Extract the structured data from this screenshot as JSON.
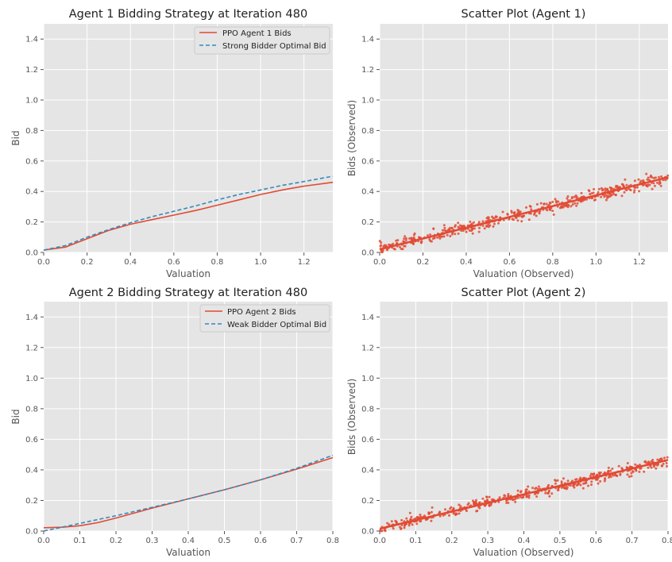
{
  "chart_data": [
    {
      "type": "line",
      "title": "Agent 1 Bidding Strategy at Iteration 480",
      "xlabel": "Valuation",
      "ylabel": "Bid",
      "xlim": [
        0,
        1.333
      ],
      "ylim": [
        0,
        1.5
      ],
      "xticks": [
        0.0,
        0.2,
        0.4,
        0.6,
        0.8,
        1.0,
        1.2
      ],
      "xtick_labels": [
        "0.0",
        "0.2",
        "0.4",
        "0.6",
        "0.8",
        "1.0",
        "1.2"
      ],
      "yticks": [
        0.0,
        0.2,
        0.4,
        0.6,
        0.8,
        1.0,
        1.2,
        1.4
      ],
      "ytick_labels": [
        "0.0",
        "0.2",
        "0.4",
        "0.6",
        "0.8",
        "1.0",
        "1.2",
        "1.4"
      ],
      "legend_position": "top-right",
      "series": [
        {
          "name": "PPO Agent 1 Bids",
          "style": "solid",
          "color": "#e24a33",
          "x": [
            0,
            0.1,
            0.2,
            0.3,
            0.4,
            0.5,
            0.6,
            0.7,
            0.8,
            0.9,
            1.0,
            1.1,
            1.2,
            1.333
          ],
          "y": [
            0.015,
            0.035,
            0.09,
            0.145,
            0.185,
            0.215,
            0.245,
            0.275,
            0.31,
            0.345,
            0.38,
            0.41,
            0.435,
            0.46
          ]
        },
        {
          "name": "Strong Bidder Optimal Bid",
          "style": "dashed",
          "color": "#348abd",
          "x": [
            0,
            0.1,
            0.2,
            0.3,
            0.4,
            0.5,
            0.6,
            0.7,
            0.8,
            0.9,
            1.0,
            1.1,
            1.2,
            1.333
          ],
          "y": [
            0.015,
            0.045,
            0.1,
            0.15,
            0.195,
            0.235,
            0.27,
            0.305,
            0.345,
            0.38,
            0.41,
            0.44,
            0.465,
            0.5
          ]
        }
      ]
    },
    {
      "type": "scatter",
      "title": "Scatter Plot (Agent 1)",
      "xlabel": "Valuation (Observed)",
      "ylabel": "Bids (Observed)",
      "xlim": [
        0,
        1.333
      ],
      "ylim": [
        0,
        1.5
      ],
      "xticks": [
        0.0,
        0.2,
        0.4,
        0.6,
        0.8,
        1.0,
        1.2
      ],
      "xtick_labels": [
        "0.0",
        "0.2",
        "0.4",
        "0.6",
        "0.8",
        "1.0",
        "1.2"
      ],
      "yticks": [
        0.0,
        0.2,
        0.4,
        0.6,
        0.8,
        1.0,
        1.2,
        1.4
      ],
      "ytick_labels": [
        "0.0",
        "0.2",
        "0.4",
        "0.6",
        "0.8",
        "1.0",
        "1.2",
        "1.4"
      ],
      "points": {
        "count": 500,
        "x_range": [
          0,
          1.333
        ],
        "trend": {
          "slope": 0.355,
          "intercept": 0.02
        },
        "noise": 0.02
      },
      "fit_line": {
        "x": [
          0,
          1.333
        ],
        "y": [
          0.02,
          0.493
        ]
      }
    },
    {
      "type": "line",
      "title": "Agent 2 Bidding Strategy at Iteration 480",
      "xlabel": "Valuation",
      "ylabel": "Bid",
      "xlim": [
        0,
        0.8
      ],
      "ylim": [
        0,
        1.5
      ],
      "xticks": [
        0.0,
        0.1,
        0.2,
        0.3,
        0.4,
        0.5,
        0.6,
        0.7,
        0.8
      ],
      "xtick_labels": [
        "0.0",
        "0.1",
        "0.2",
        "0.3",
        "0.4",
        "0.5",
        "0.6",
        "0.7",
        "0.8"
      ],
      "yticks": [
        0.0,
        0.2,
        0.4,
        0.6,
        0.8,
        1.0,
        1.2,
        1.4
      ],
      "ytick_labels": [
        "0.0",
        "0.2",
        "0.4",
        "0.6",
        "0.8",
        "1.0",
        "1.2",
        "1.4"
      ],
      "legend_position": "top-right",
      "series": [
        {
          "name": "PPO Agent 2 Bids",
          "style": "solid",
          "color": "#e24a33",
          "x": [
            0,
            0.05,
            0.1,
            0.15,
            0.2,
            0.3,
            0.4,
            0.5,
            0.6,
            0.7,
            0.8
          ],
          "y": [
            0.022,
            0.025,
            0.035,
            0.055,
            0.085,
            0.15,
            0.21,
            0.27,
            0.335,
            0.405,
            0.48
          ]
        },
        {
          "name": "Weak Bidder Optimal Bid",
          "style": "dashed",
          "color": "#348abd",
          "x": [
            0,
            0.05,
            0.1,
            0.15,
            0.2,
            0.3,
            0.4,
            0.5,
            0.6,
            0.7,
            0.8
          ],
          "y": [
            0.0,
            0.025,
            0.05,
            0.075,
            0.1,
            0.155,
            0.21,
            0.27,
            0.335,
            0.41,
            0.495
          ]
        }
      ]
    },
    {
      "type": "scatter",
      "title": "Scatter Plot (Agent 2)",
      "xlabel": "Valuation (Observed)",
      "ylabel": "Bids (Observed)",
      "xlim": [
        0,
        0.8
      ],
      "ylim": [
        0,
        1.5
      ],
      "xticks": [
        0.0,
        0.1,
        0.2,
        0.3,
        0.4,
        0.5,
        0.6,
        0.7,
        0.8
      ],
      "xtick_labels": [
        "0.0",
        "0.1",
        "0.2",
        "0.3",
        "0.4",
        "0.5",
        "0.6",
        "0.7",
        "0.8"
      ],
      "yticks": [
        0.0,
        0.2,
        0.4,
        0.6,
        0.8,
        1.0,
        1.2,
        1.4
      ],
      "ytick_labels": [
        "0.0",
        "0.2",
        "0.4",
        "0.6",
        "0.8",
        "1.0",
        "1.2",
        "1.4"
      ],
      "points": {
        "count": 500,
        "x_range": [
          0,
          0.8
        ],
        "trend": {
          "slope": 0.56,
          "intercept": 0.015
        },
        "noise": 0.018
      },
      "fit_line": {
        "x": [
          0,
          0.8
        ],
        "y": [
          0.015,
          0.465
        ]
      }
    }
  ],
  "colors": {
    "panel_bg": "#e5e5e5",
    "grid": "#ffffff",
    "red": "#e24a33",
    "blue": "#348abd",
    "text": "#222222",
    "tick_text": "#555555"
  }
}
